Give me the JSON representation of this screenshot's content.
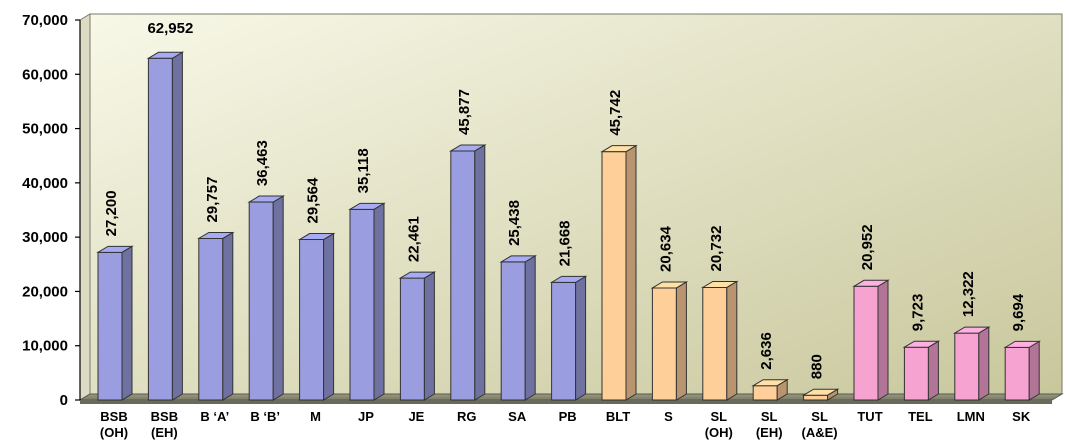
{
  "chart_data": {
    "type": "bar",
    "title": "",
    "xlabel": "",
    "ylabel": "",
    "ylim": [
      0,
      70000
    ],
    "yticks": [
      "0",
      "10,000",
      "20,000",
      "30,000",
      "40,000",
      "50,000",
      "60,000",
      "70,000"
    ],
    "grid": false,
    "legend": "none",
    "style": "3d-bars",
    "categories": [
      [
        "BSB",
        "(OH)"
      ],
      [
        "BSB",
        "(EH)"
      ],
      [
        "B ‘A’"
      ],
      [
        "B ‘B’"
      ],
      [
        "M"
      ],
      [
        "JP"
      ],
      [
        "JE"
      ],
      [
        "RG"
      ],
      [
        "SA"
      ],
      [
        "PB"
      ],
      [
        "BLT"
      ],
      [
        "S"
      ],
      [
        "SL",
        "(OH)"
      ],
      [
        "SL",
        "(EH)"
      ],
      [
        "SL",
        "(A&E)"
      ],
      [
        "TUT"
      ],
      [
        "TEL"
      ],
      [
        "LMN"
      ],
      [
        "SK"
      ]
    ],
    "values": [
      27200,
      62952,
      29757,
      36463,
      29564,
      35118,
      22461,
      45877,
      25438,
      21668,
      45742,
      20634,
      20732,
      2636,
      880,
      20952,
      9723,
      12322,
      9694
    ],
    "value_labels": [
      "27,200",
      "62,952",
      "29,757",
      "36,463",
      "29,564",
      "35,118",
      "22,461",
      "45,877",
      "25,438",
      "21,668",
      "45,742",
      "20,634",
      "20,732",
      "2,636",
      "880",
      "20,952",
      "9,723",
      "12,322",
      "9,694"
    ],
    "bar_colors": [
      "#9a9ee0",
      "#9a9ee0",
      "#9a9ee0",
      "#9a9ee0",
      "#9a9ee0",
      "#9a9ee0",
      "#9a9ee0",
      "#9a9ee0",
      "#9a9ee0",
      "#9a9ee0",
      "#ffcf9a",
      "#ffcf9a",
      "#ffcf9a",
      "#ffcf9a",
      "#ffcf9a",
      "#f7a3d2",
      "#f7a3d2",
      "#f7a3d2",
      "#f7a3d2"
    ],
    "background_gradient": [
      "#f8f8e8",
      "#c8c79c"
    ]
  }
}
